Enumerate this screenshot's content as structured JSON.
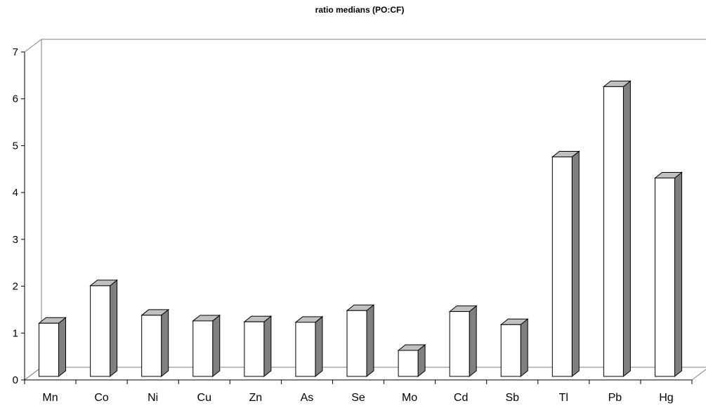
{
  "chart_data": {
    "type": "bar",
    "title": "ratio medians (PO:CF)",
    "xlabel": "",
    "ylabel": "",
    "ylim": [
      0,
      7
    ],
    "yticks": [
      0,
      1,
      2,
      3,
      4,
      5,
      6,
      7
    ],
    "grid": false,
    "legend": "none",
    "style": "3d-column",
    "colors": {
      "front": "#ffffff",
      "side": "#808080",
      "top": "#c0c0c0",
      "edge": "#000000"
    },
    "categories": [
      "Mn",
      "Co",
      "Ni",
      "Cu",
      "Zn",
      "As",
      "Se",
      "Mo",
      "Cd",
      "Sb",
      "Tl",
      "Pb",
      "Hg"
    ],
    "values": [
      1.15,
      1.95,
      1.32,
      1.2,
      1.18,
      1.17,
      1.42,
      0.57,
      1.4,
      1.12,
      4.7,
      6.2,
      4.25
    ]
  }
}
